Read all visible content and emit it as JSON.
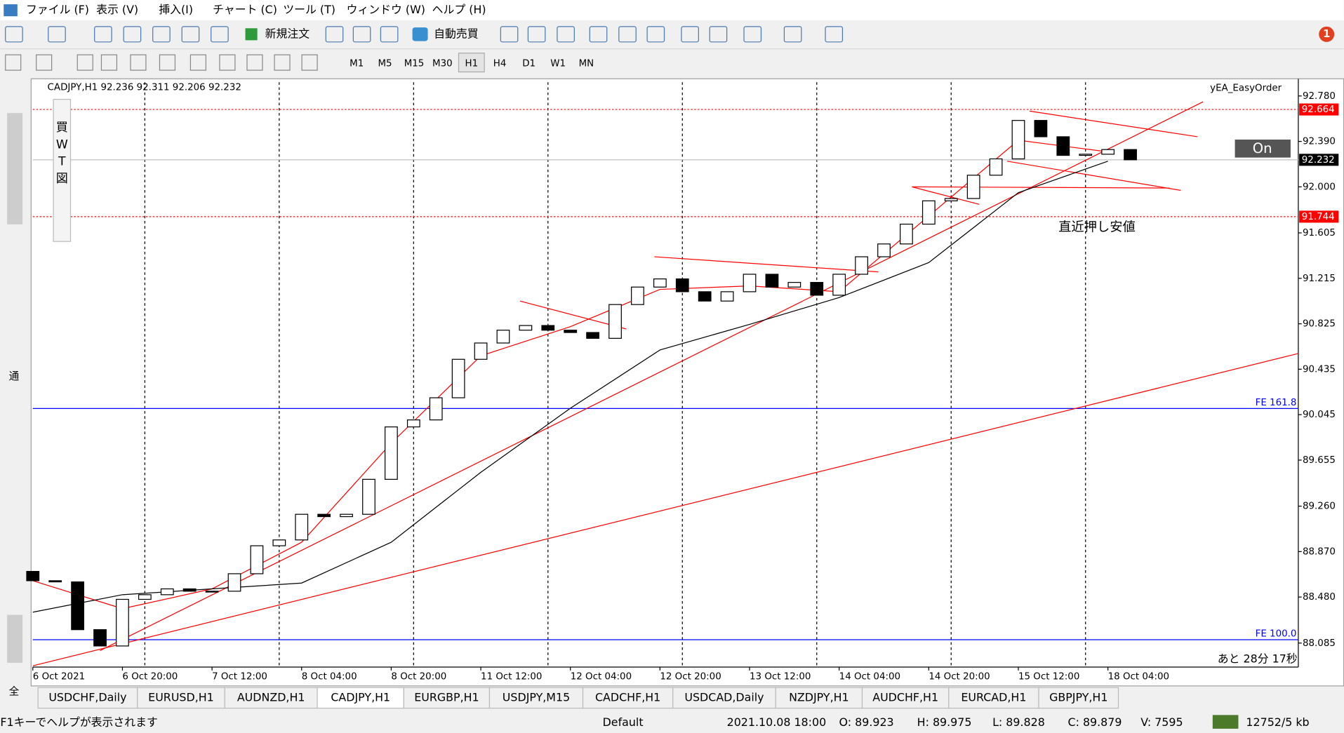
{
  "menu": [
    "ファイル (F)",
    "表示 (V)",
    "挿入(I)",
    "チャート (C)",
    "ツール (T)",
    "ウィンドウ (W)",
    "ヘルプ (H)"
  ],
  "toolbar": {
    "new_order": "新規注文",
    "auto_trading": "自動売買",
    "timeframes": [
      "M1",
      "M5",
      "M15",
      "M30",
      "H1",
      "H4",
      "D1",
      "W1",
      "MN"
    ],
    "active_timeframe": 4
  },
  "notification_count": 1,
  "object_tools": [
    "買",
    "W",
    "T",
    "図"
  ],
  "side_panel": {
    "top_tab": "通",
    "bottom_tab": "全"
  },
  "chart_data": {
    "type": "candlestick",
    "header": "CADJPY,H1  92.236 92.311 92.206 92.232",
    "indicator_label": "yEA_EasyOrder",
    "button": "On",
    "countdown": "あと 28分 17秒",
    "annotation": "直近押し安値",
    "x": [
      0,
      4,
      8,
      12,
      16,
      20,
      24,
      28,
      32,
      36,
      40,
      44,
      48,
      52,
      56,
      60,
      64,
      68,
      72,
      76,
      80,
      84,
      88,
      92,
      96,
      100,
      104,
      108,
      112,
      116,
      120,
      124,
      128,
      132,
      136,
      140,
      144,
      148,
      152,
      156,
      160,
      164,
      168,
      172,
      176,
      180,
      184,
      188,
      192,
      196
    ],
    "open": [
      88.7,
      88.62,
      88.61,
      88.2,
      88.06,
      88.46,
      88.5,
      88.55,
      88.53,
      88.53,
      88.68,
      88.92,
      88.97,
      89.19,
      89.17,
      89.19,
      89.49,
      89.94,
      90.0,
      90.19,
      90.52,
      90.66,
      90.77,
      90.81,
      90.77,
      90.75,
      90.7,
      90.99,
      91.14,
      91.21,
      91.1,
      91.02,
      91.1,
      91.25,
      91.14,
      91.18,
      91.07,
      91.25,
      91.4,
      91.51,
      91.68,
      91.88,
      91.9,
      92.1,
      92.24,
      92.57,
      92.43,
      92.27,
      92.28,
      92.32
    ],
    "close": [
      88.62,
      88.61,
      88.2,
      88.06,
      88.46,
      88.5,
      88.55,
      88.53,
      88.53,
      88.68,
      88.92,
      88.97,
      89.19,
      89.17,
      89.19,
      89.49,
      89.94,
      90.0,
      90.19,
      90.52,
      90.66,
      90.77,
      90.81,
      90.77,
      90.75,
      90.7,
      90.99,
      91.14,
      91.21,
      91.1,
      91.02,
      91.1,
      91.25,
      91.14,
      91.18,
      91.07,
      91.25,
      91.4,
      91.51,
      91.68,
      91.88,
      91.9,
      92.1,
      92.24,
      92.57,
      92.43,
      92.27,
      92.28,
      92.32,
      92.232
    ],
    "ma_lines": [
      {
        "color": "#ff0000",
        "x": [
          0,
          16,
          32,
          48,
          64,
          80,
          96,
          112,
          128,
          144,
          160,
          176,
          192
        ],
        "values": [
          88.62,
          88.38,
          88.55,
          88.95,
          89.8,
          90.55,
          90.8,
          91.12,
          91.15,
          91.1,
          91.75,
          92.4,
          92.3
        ]
      },
      {
        "color": "#000000",
        "x": [
          0,
          16,
          32,
          48,
          64,
          80,
          96,
          112,
          128,
          144,
          160,
          176,
          192
        ],
        "values": [
          88.35,
          88.5,
          88.55,
          88.6,
          88.95,
          89.55,
          90.1,
          90.6,
          90.82,
          91.05,
          91.35,
          91.95,
          92.22
        ]
      }
    ],
    "trendline_color": "#ff0000",
    "trendlines": [
      {
        "x": [
          0,
          226
        ],
        "values": [
          87.89,
          90.57
        ]
      },
      {
        "x": [
          12,
          209
        ],
        "values": [
          88.02,
          92.73
        ]
      },
      {
        "x": [
          178,
          208
        ],
        "values": [
          92.65,
          92.43
        ]
      },
      {
        "x": [
          174,
          205
        ],
        "values": [
          92.22,
          91.97
        ]
      },
      {
        "x": [
          157,
          203
        ],
        "values": [
          92.0,
          91.99
        ]
      },
      {
        "x": [
          87,
          106
        ],
        "values": [
          91.02,
          90.78
        ]
      },
      {
        "x": [
          111,
          151
        ],
        "values": [
          91.4,
          91.27
        ]
      },
      {
        "x": [
          157,
          169
        ],
        "values": [
          92.0,
          91.85
        ]
      }
    ],
    "price_lines": [
      {
        "value": 92.664,
        "color": "#ff0000"
      },
      {
        "value": 91.744,
        "color": "#ff0000"
      },
      {
        "value": 92.232,
        "color": "#000000"
      }
    ],
    "fibo_lines": [
      {
        "value": 90.098,
        "label": "FE 161.8",
        "color": "#0000ff"
      },
      {
        "value": 88.114,
        "label": "FE 100.0",
        "color": "#0000ff"
      }
    ],
    "day_separators": [
      20,
      44,
      68,
      92,
      116,
      140,
      164,
      188
    ],
    "xlim": [
      0,
      226
    ],
    "ylim": [
      87.879,
      92.898
    ],
    "xticks": [
      {
        "value": 0,
        "label": "6 Oct 2021"
      },
      {
        "value": 16,
        "label": "6 Oct 20:00"
      },
      {
        "value": 32,
        "label": "7 Oct 12:00"
      },
      {
        "value": 48,
        "label": "8 Oct 04:00"
      },
      {
        "value": 64,
        "label": "8 Oct 20:00"
      },
      {
        "value": 80,
        "label": "11 Oct 12:00"
      },
      {
        "value": 96,
        "label": "12 Oct 04:00"
      },
      {
        "value": 112,
        "label": "12 Oct 20:00"
      },
      {
        "value": 128,
        "label": "13 Oct 12:00"
      },
      {
        "value": 144,
        "label": "14 Oct 04:00"
      },
      {
        "value": 160,
        "label": "14 Oct 20:00"
      },
      {
        "value": 176,
        "label": "15 Oct 12:00"
      },
      {
        "value": 192,
        "label": "18 Oct 04:00"
      }
    ],
    "yticks": [
      {
        "value": 92.78,
        "label": "92.780"
      },
      {
        "value": 92.39,
        "label": "92.390"
      },
      {
        "value": 92.0,
        "label": "92.000"
      },
      {
        "value": 91.605,
        "label": "91.605"
      },
      {
        "value": 91.215,
        "label": "91.215"
      },
      {
        "value": 90.825,
        "label": "90.825"
      },
      {
        "value": 90.435,
        "label": "90.435"
      },
      {
        "value": 90.045,
        "label": "90.045"
      },
      {
        "value": 89.655,
        "label": "89.655"
      },
      {
        "value": 89.26,
        "label": "89.260"
      },
      {
        "value": 88.87,
        "label": "88.870"
      },
      {
        "value": 88.48,
        "label": "88.480"
      },
      {
        "value": 88.085,
        "label": "88.085"
      }
    ]
  },
  "tabs": [
    "USDCHF,Daily",
    "EURUSD,H1",
    "AUDNZD,H1",
    "CADJPY,H1",
    "EURGBP,H1",
    "USDJPY,M15",
    "CADCHF,H1",
    "USDCAD,Daily",
    "NZDJPY,H1",
    "AUDCHF,H1",
    "EURCAD,H1",
    "GBPJPY,H1"
  ],
  "active_tab": 3,
  "status_bar": {
    "help": "F1キーでヘルプが表示されます",
    "profile": "Default",
    "time": "2021.10.08 18:00",
    "open": "O: 89.923",
    "high": "H: 89.975",
    "low": "L: 89.828",
    "close": "C: 89.879",
    "volume": "V: 7595",
    "traffic": "12752/5 kb"
  }
}
